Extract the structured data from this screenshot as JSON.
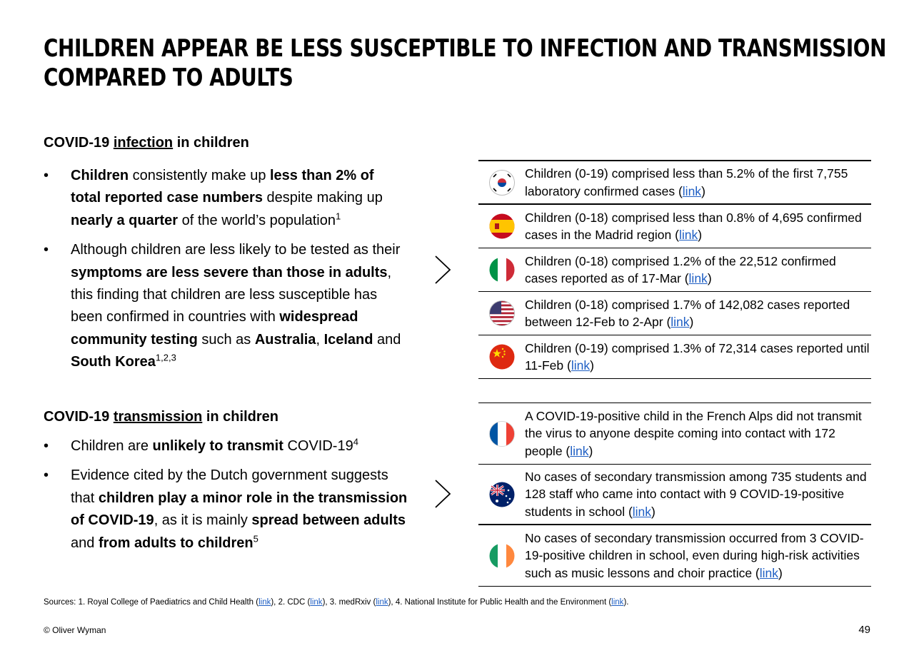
{
  "title": {
    "line1": "CHILDREN APPEAR BE LESS SUSCEPTIBLE TO INFECTION AND TRANSMISSION",
    "line2": "COMPARED TO ADULTS"
  },
  "bullet_glyph": "•",
  "link_text": "link",
  "infection": {
    "heading_pre": "COVID-19 ",
    "heading_u": "infection",
    "heading_post": " in children",
    "bullet1": {
      "a": "Children",
      "b": " consistently make up ",
      "c": "less than 2% of total reported case numbers",
      "d": " despite making up ",
      "e": "nearly a quarter",
      "f": " of the world’s population",
      "sup": "1"
    },
    "bullet2": {
      "a": "Although children are less likely to be tested as their ",
      "b": "symptoms are less severe than those in adults",
      "c": ", this finding that children are less susceptible has been confirmed in countries with ",
      "d": "widespread community testing",
      "e": " such as ",
      "f": "Australia",
      "g": ", ",
      "h": "Iceland",
      "i": " and ",
      "j": "South Korea",
      "sup": "1,2,3"
    },
    "rows": [
      {
        "pre": "Children (0-19) comprised less than 5.2% of the first 7,755 laboratory confirmed cases (",
        "post": ")"
      },
      {
        "pre": "Children (0-18) comprised less than 0.8% of 4,695 confirmed cases in the Madrid region (",
        "post": ")"
      },
      {
        "pre": "Children (0-18) comprised 1.2% of the 22,512 confirmed cases reported as of 17-Mar (",
        "post": ")"
      },
      {
        "pre": "Children (0-18) comprised 1.7% of 142,082 cases reported between 12-Feb to 2-Apr (",
        "post": ")"
      },
      {
        "pre": "Children (0-19) comprised 1.3% of 72,314 cases reported until 11-Feb (",
        "post": ")"
      }
    ]
  },
  "transmission": {
    "heading_pre": "COVID-19 ",
    "heading_u": "transmission",
    "heading_post": " in children",
    "bullet1": {
      "a": "Children are ",
      "b": "unlikely to transmit",
      "c": " COVID-19",
      "sup": "4"
    },
    "bullet2": {
      "a": "Evidence cited by the Dutch government suggests that ",
      "b": "children play a minor role in the transmission of COVID-19",
      "c": ", as it is mainly ",
      "d": "spread between adults",
      "e": " and ",
      "f": "from adults to children",
      "sup": "5"
    },
    "rows": [
      {
        "pre": "A COVID-19-positive child in the French Alps did not transmit the virus to anyone despite coming into contact with 172 people (",
        "post": ")"
      },
      {
        "pre": "No cases of secondary transmission among 735 students and 128 staff who came into contact with 9 COVID-19-positive students in school (",
        "post": ")"
      },
      {
        "pre": "No cases of secondary transmission occurred from 3 COVID-19-positive children in school, even during high-risk activities such as music lessons and choir practice (",
        "post": ")"
      }
    ]
  },
  "sources": {
    "s1": "Sources: 1. Royal College of Paediatrics and Child Health (",
    "s2": "), 2. CDC (",
    "s3": "), 3. medRxiv (",
    "s4": "), 4. National Institute for Public Health and the Environment (",
    "s5": ")."
  },
  "footer": {
    "copyright": "© Oliver Wyman",
    "page": "49"
  },
  "colors": {
    "link": "#1f5fc4",
    "flag_red": "#d52b1e",
    "flag_blue": "#0055a4"
  }
}
